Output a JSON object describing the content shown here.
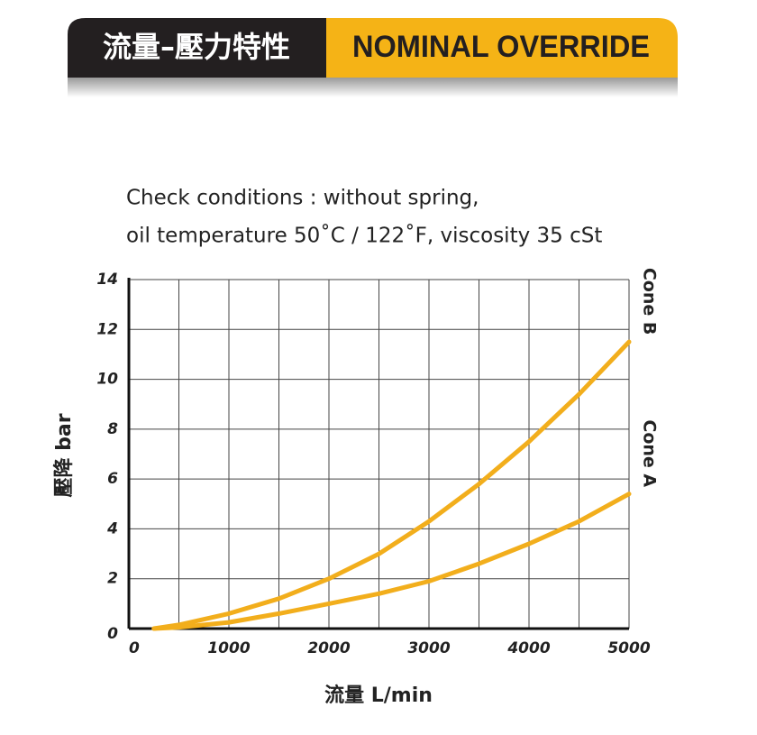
{
  "header": {
    "title_zh": "流量–壓力特性",
    "title_en": "NOMINAL OVERRIDE"
  },
  "chart_data": {
    "type": "line",
    "subtitle": [
      "Check conditions : without spring,",
      "oil temperature 50˚C / 122˚F, viscosity 35 cSt"
    ],
    "x_label": "流量 L/min",
    "y_label": "壓降 bar",
    "x": [
      250,
      500,
      1000,
      1500,
      2000,
      2500,
      3000,
      3500,
      4000,
      4500,
      5000
    ],
    "series": [
      {
        "name": "Cone B",
        "color": "#f2ae1c",
        "values": [
          0,
          0.15,
          0.6,
          1.2,
          2.0,
          3.0,
          4.3,
          5.8,
          7.5,
          9.4,
          11.5
        ]
      },
      {
        "name": "Cone A",
        "color": "#f2ae1c",
        "values": [
          0,
          0.05,
          0.25,
          0.6,
          1.0,
          1.4,
          1.9,
          2.6,
          3.4,
          4.3,
          5.4
        ]
      }
    ],
    "xlim": [
      0,
      5000
    ],
    "ylim": [
      0,
      14
    ],
    "xticks": [
      0,
      1000,
      2000,
      3000,
      4000,
      5000
    ],
    "yticks": [
      0,
      2,
      4,
      6,
      8,
      10,
      12,
      14
    ],
    "xgrid": [
      500,
      1000,
      1500,
      2000,
      2500,
      3000,
      3500,
      4000,
      4500,
      5000
    ],
    "grid": true
  }
}
